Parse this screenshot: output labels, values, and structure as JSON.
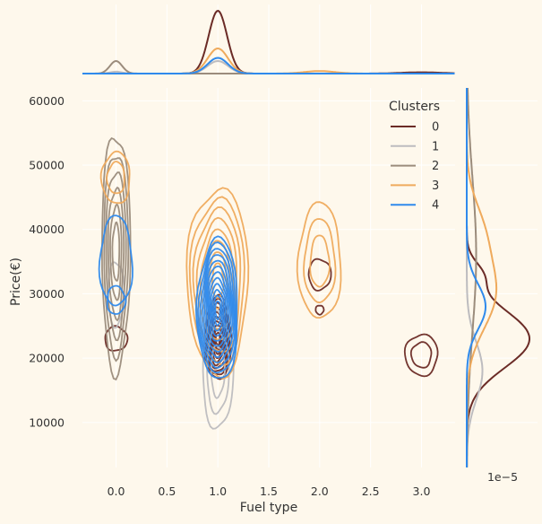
{
  "chart_data": {
    "type": "kde-joint",
    "xlabel": "Fuel type",
    "ylabel": "Price(€)",
    "x_ticks": [
      "0.0",
      "0.5",
      "1.0",
      "1.5",
      "2.0",
      "2.5",
      "3.0"
    ],
    "x_tick_values": [
      0,
      0.5,
      1,
      1.5,
      2,
      2.5,
      3
    ],
    "y_ticks": [
      "10000",
      "20000",
      "30000",
      "40000",
      "50000",
      "60000"
    ],
    "y_tick_values": [
      10000,
      20000,
      30000,
      40000,
      50000,
      60000
    ],
    "xlim": [
      -0.33,
      3.33
    ],
    "ylim": [
      3000,
      62000
    ],
    "marginal_y_scale_label": "1e−5",
    "grid": true,
    "legend": {
      "title": "Clusters",
      "placement": "top-right",
      "entries": [
        "0",
        "1",
        "2",
        "3",
        "4"
      ]
    },
    "colors": {
      "background": "#fef8ec",
      "grid": "#ffffff",
      "0": "#6b2b26",
      "1": "#bdbcbf",
      "2": "#9b8c7c",
      "3": "#efaa5c",
      "4": "#2f8aec"
    },
    "series": [
      {
        "name": "0",
        "blobs": [
          {
            "x": 1.0,
            "y": 23000,
            "sx": 0.13,
            "sy": 6500,
            "levels": 10
          },
          {
            "x": 0.0,
            "y": 23000,
            "sx": 0.11,
            "sy": 1900,
            "levels": 1
          },
          {
            "x": 2.0,
            "y": 33000,
            "sx": 0.11,
            "sy": 2400,
            "levels": 1
          },
          {
            "x": 2.0,
            "y": 27500,
            "sx": 0.04,
            "sy": 700,
            "levels": 1
          },
          {
            "x": 3.0,
            "y": 20500,
            "sx": 0.16,
            "sy": 3200,
            "levels": 2
          }
        ],
        "marginal_x": [
          {
            "x": 1.0,
            "h": 1.0,
            "w": 0.09
          },
          {
            "x": 3.0,
            "h": 0.02,
            "w": 0.2
          }
        ],
        "marginal_y": [
          {
            "y": 23000,
            "h": 1.0,
            "w": 4500
          },
          {
            "y": 33000,
            "h": 0.2,
            "w": 2000
          }
        ]
      },
      {
        "name": "1",
        "blobs": [
          {
            "x": 1.0,
            "y": 18000,
            "sx": 0.15,
            "sy": 9000,
            "levels": 3
          },
          {
            "x": 0.0,
            "y": 30000,
            "sx": 0.08,
            "sy": 5000,
            "levels": 1
          }
        ],
        "marginal_x": [
          {
            "x": 1.0,
            "h": 0.2,
            "w": 0.1
          },
          {
            "x": 0.0,
            "h": 0.03,
            "w": 0.06
          }
        ],
        "marginal_y": [
          {
            "y": 18000,
            "h": 0.25,
            "w": 4500
          }
        ]
      },
      {
        "name": "2",
        "blobs": [
          {
            "x": 0.0,
            "y": 36500,
            "sx": 0.14,
            "sy": 18500,
            "levels": 6
          }
        ],
        "marginal_x": [
          {
            "x": 0.0,
            "h": 0.2,
            "w": 0.06
          }
        ],
        "marginal_y": [
          {
            "y": 36000,
            "h": 0.15,
            "w": 12000
          }
        ]
      },
      {
        "name": "3",
        "blobs": [
          {
            "x": 1.0,
            "y": 32000,
            "sx": 0.3,
            "sy": 14500,
            "levels": 8
          },
          {
            "x": 0.0,
            "y": 48000,
            "sx": 0.14,
            "sy": 4000,
            "levels": 2
          },
          {
            "x": 2.0,
            "y": 35000,
            "sx": 0.21,
            "sy": 9000,
            "levels": 3
          }
        ],
        "marginal_x": [
          {
            "x": 1.0,
            "h": 0.4,
            "w": 0.1
          },
          {
            "x": 2.0,
            "h": 0.04,
            "w": 0.15
          }
        ],
        "marginal_y": [
          {
            "y": 30000,
            "h": 0.45,
            "w": 5500
          },
          {
            "y": 40000,
            "h": 0.22,
            "w": 4500
          }
        ]
      },
      {
        "name": "4",
        "blobs": [
          {
            "x": 1.0,
            "y": 27500,
            "sx": 0.2,
            "sy": 11000,
            "levels": 12
          },
          {
            "x": 0.0,
            "y": 35000,
            "sx": 0.16,
            "sy": 7000,
            "levels": 1
          },
          {
            "x": 0.0,
            "y": 29000,
            "sx": 0.09,
            "sy": 2200,
            "levels": 1
          }
        ],
        "marginal_x": [
          {
            "x": 1.0,
            "h": 0.25,
            "w": 0.1
          }
        ],
        "marginal_y": [
          {
            "y": 28000,
            "h": 0.3,
            "w": 3500
          }
        ]
      }
    ]
  }
}
